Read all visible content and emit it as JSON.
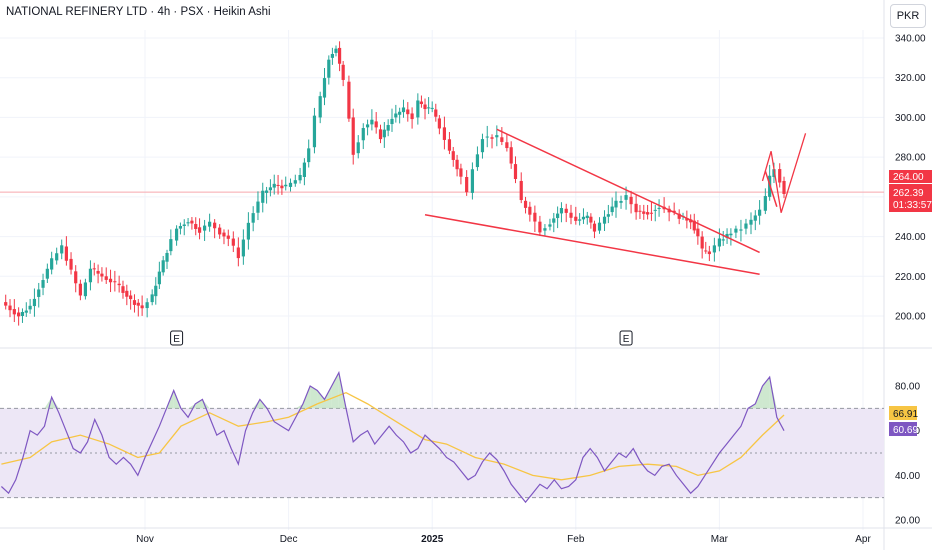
{
  "header": {
    "title": "NATIONAL REFINERY LTD · 4h · PSX · Heikin Ashi",
    "currency": "PKR"
  },
  "chart_data": [
    {
      "type": "candlestick",
      "ticker": "NATIONAL REFINERY LTD",
      "interval": "4h",
      "exchange": "PSX",
      "style": "Heikin Ashi",
      "y_ticks": [
        "340.00",
        "320.00",
        "300.00",
        "280.00",
        "260.00",
        "240.00",
        "220.00",
        "200.00"
      ],
      "x_ticks": [
        "Nov",
        "Dec",
        "2025",
        "Feb",
        "Mar",
        "Apr"
      ],
      "ylim": [
        190,
        345
      ],
      "x_range_months": [
        9.0,
        15.0
      ],
      "colors": {
        "up": "#26a69a",
        "down": "#f23645",
        "trendline": "#f23645",
        "current_line": "#f7a8ae"
      },
      "last_price": "262.39",
      "price_label_top": "264.00",
      "countdown": "01:33:57",
      "earnings_markers": [
        {
          "label": "E",
          "month": 10.22
        },
        {
          "label": "E",
          "month": 13.35
        }
      ],
      "path": [
        [
          9.0,
          207
        ],
        [
          9.12,
          200
        ],
        [
          9.2,
          205
        ],
        [
          9.35,
          228
        ],
        [
          9.42,
          235
        ],
        [
          9.55,
          210
        ],
        [
          9.62,
          224
        ],
        [
          9.7,
          220
        ],
        [
          9.82,
          215
        ],
        [
          9.9,
          208
        ],
        [
          9.98,
          204
        ],
        [
          10.05,
          210
        ],
        [
          10.1,
          222
        ],
        [
          10.18,
          238
        ],
        [
          10.22,
          244
        ],
        [
          10.3,
          248
        ],
        [
          10.38,
          243
        ],
        [
          10.45,
          247
        ],
        [
          10.52,
          242
        ],
        [
          10.58,
          239
        ],
        [
          10.65,
          230
        ],
        [
          10.72,
          247
        ],
        [
          10.82,
          262
        ],
        [
          10.9,
          266
        ],
        [
          10.98,
          265
        ],
        [
          11.08,
          270
        ],
        [
          11.14,
          285
        ],
        [
          11.18,
          300
        ],
        [
          11.22,
          310
        ],
        [
          11.28,
          330
        ],
        [
          11.33,
          335
        ],
        [
          11.38,
          318
        ],
        [
          11.42,
          300
        ],
        [
          11.45,
          282
        ],
        [
          11.52,
          295
        ],
        [
          11.58,
          298
        ],
        [
          11.64,
          290
        ],
        [
          11.72,
          300
        ],
        [
          11.8,
          304
        ],
        [
          11.86,
          300
        ],
        [
          11.9,
          308
        ],
        [
          11.95,
          305
        ],
        [
          12.0,
          304
        ],
        [
          12.05,
          295
        ],
        [
          12.12,
          283
        ],
        [
          12.2,
          270
        ],
        [
          12.24,
          262
        ],
        [
          12.28,
          275
        ],
        [
          12.35,
          290
        ],
        [
          12.45,
          290
        ],
        [
          12.52,
          285
        ],
        [
          12.58,
          268
        ],
        [
          12.62,
          258
        ],
        [
          12.68,
          252
        ],
        [
          12.75,
          243
        ],
        [
          12.82,
          247
        ],
        [
          12.9,
          254
        ],
        [
          13.0,
          248
        ],
        [
          13.08,
          250
        ],
        [
          13.13,
          243
        ],
        [
          13.2,
          250
        ],
        [
          13.28,
          257
        ],
        [
          13.35,
          260
        ],
        [
          13.42,
          253
        ],
        [
          13.5,
          252
        ],
        [
          13.58,
          255
        ],
        [
          13.65,
          253
        ],
        [
          13.72,
          250
        ],
        [
          13.8,
          248
        ],
        [
          13.85,
          240
        ],
        [
          13.88,
          233
        ],
        [
          13.93,
          232
        ],
        [
          14.0,
          238
        ],
        [
          14.08,
          242
        ],
        [
          14.15,
          244
        ],
        [
          14.22,
          248
        ],
        [
          14.28,
          253
        ],
        [
          14.32,
          260
        ],
        [
          14.35,
          270
        ],
        [
          14.38,
          274
        ],
        [
          14.42,
          268
        ],
        [
          14.45,
          262
        ]
      ],
      "annotations": [
        {
          "type": "line",
          "label": "falling wedge upper",
          "from": [
            12.45,
            294
          ],
          "to": [
            14.28,
            232
          ]
        },
        {
          "type": "line",
          "label": "falling wedge lower",
          "from": [
            11.95,
            251
          ],
          "to": [
            14.28,
            221
          ]
        },
        {
          "type": "zigzag",
          "label": "projection",
          "points": [
            [
              14.3,
              268
            ],
            [
              14.36,
              283
            ],
            [
              14.43,
              252
            ],
            [
              14.6,
              292
            ]
          ]
        },
        {
          "type": "line",
          "from": [
            14.32,
            273
          ],
          "to": [
            14.4,
            255
          ]
        }
      ]
    },
    {
      "type": "line",
      "indicator": "RSI",
      "y_ticks": [
        "80.00",
        "60.00",
        "40.00",
        "20.00"
      ],
      "ylim": [
        18,
        90
      ],
      "band": [
        30,
        70
      ],
      "midline": 50,
      "colors": {
        "rsi": "#7e57c2",
        "ma": "#f7c544",
        "band_fill": "#ede7f6"
      },
      "rsi_value": "60.69",
      "ma_value": "66.91",
      "rsi": [
        [
          9.0,
          35
        ],
        [
          9.05,
          32
        ],
        [
          9.1,
          38
        ],
        [
          9.15,
          48
        ],
        [
          9.2,
          60
        ],
        [
          9.25,
          58
        ],
        [
          9.3,
          62
        ],
        [
          9.35,
          75
        ],
        [
          9.4,
          68
        ],
        [
          9.45,
          60
        ],
        [
          9.5,
          52
        ],
        [
          9.55,
          50
        ],
        [
          9.6,
          55
        ],
        [
          9.65,
          65
        ],
        [
          9.7,
          58
        ],
        [
          9.75,
          48
        ],
        [
          9.8,
          45
        ],
        [
          9.85,
          48
        ],
        [
          9.9,
          45
        ],
        [
          9.95,
          40
        ],
        [
          10.0,
          48
        ],
        [
          10.05,
          55
        ],
        [
          10.1,
          62
        ],
        [
          10.15,
          70
        ],
        [
          10.2,
          78
        ],
        [
          10.25,
          70
        ],
        [
          10.3,
          66
        ],
        [
          10.35,
          72
        ],
        [
          10.4,
          74
        ],
        [
          10.45,
          66
        ],
        [
          10.5,
          58
        ],
        [
          10.55,
          60
        ],
        [
          10.6,
          52
        ],
        [
          10.65,
          45
        ],
        [
          10.7,
          60
        ],
        [
          10.75,
          68
        ],
        [
          10.8,
          74
        ],
        [
          10.85,
          70
        ],
        [
          10.9,
          64
        ],
        [
          10.95,
          62
        ],
        [
          11.0,
          60
        ],
        [
          11.05,
          66
        ],
        [
          11.1,
          72
        ],
        [
          11.15,
          80
        ],
        [
          11.2,
          78
        ],
        [
          11.25,
          74
        ],
        [
          11.3,
          80
        ],
        [
          11.35,
          86
        ],
        [
          11.4,
          70
        ],
        [
          11.45,
          55
        ],
        [
          11.5,
          58
        ],
        [
          11.55,
          60
        ],
        [
          11.6,
          54
        ],
        [
          11.65,
          58
        ],
        [
          11.7,
          62
        ],
        [
          11.75,
          58
        ],
        [
          11.8,
          55
        ],
        [
          11.85,
          50
        ],
        [
          11.9,
          52
        ],
        [
          11.95,
          58
        ],
        [
          12.0,
          55
        ],
        [
          12.05,
          52
        ],
        [
          12.1,
          48
        ],
        [
          12.15,
          46
        ],
        [
          12.2,
          42
        ],
        [
          12.25,
          38
        ],
        [
          12.3,
          40
        ],
        [
          12.35,
          46
        ],
        [
          12.4,
          50
        ],
        [
          12.45,
          47
        ],
        [
          12.5,
          42
        ],
        [
          12.55,
          36
        ],
        [
          12.6,
          32
        ],
        [
          12.65,
          28
        ],
        [
          12.7,
          32
        ],
        [
          12.75,
          36
        ],
        [
          12.8,
          34
        ],
        [
          12.85,
          38
        ],
        [
          12.9,
          34
        ],
        [
          12.95,
          35
        ],
        [
          13.0,
          38
        ],
        [
          13.05,
          48
        ],
        [
          13.1,
          52
        ],
        [
          13.15,
          48
        ],
        [
          13.2,
          42
        ],
        [
          13.25,
          46
        ],
        [
          13.3,
          50
        ],
        [
          13.35,
          48
        ],
        [
          13.4,
          52
        ],
        [
          13.45,
          46
        ],
        [
          13.5,
          42
        ],
        [
          13.55,
          40
        ],
        [
          13.6,
          44
        ],
        [
          13.65,
          45
        ],
        [
          13.7,
          40
        ],
        [
          13.75,
          36
        ],
        [
          13.8,
          32
        ],
        [
          13.85,
          35
        ],
        [
          13.9,
          40
        ],
        [
          13.95,
          45
        ],
        [
          14.0,
          50
        ],
        [
          14.05,
          54
        ],
        [
          14.1,
          58
        ],
        [
          14.15,
          62
        ],
        [
          14.2,
          70
        ],
        [
          14.25,
          72
        ],
        [
          14.3,
          80
        ],
        [
          14.35,
          84
        ],
        [
          14.4,
          66
        ],
        [
          14.45,
          60
        ]
      ],
      "ma": [
        [
          9.0,
          45
        ],
        [
          9.2,
          48
        ],
        [
          9.35,
          55
        ],
        [
          9.55,
          58
        ],
        [
          9.75,
          54
        ],
        [
          9.95,
          48
        ],
        [
          10.1,
          50
        ],
        [
          10.25,
          62
        ],
        [
          10.45,
          68
        ],
        [
          10.65,
          62
        ],
        [
          10.85,
          64
        ],
        [
          11.0,
          66
        ],
        [
          11.2,
          72
        ],
        [
          11.4,
          77
        ],
        [
          11.55,
          72
        ],
        [
          11.75,
          64
        ],
        [
          11.95,
          56
        ],
        [
          12.1,
          54
        ],
        [
          12.3,
          48
        ],
        [
          12.5,
          45
        ],
        [
          12.7,
          40
        ],
        [
          12.9,
          38
        ],
        [
          13.1,
          40
        ],
        [
          13.3,
          44
        ],
        [
          13.5,
          45
        ],
        [
          13.7,
          44
        ],
        [
          13.85,
          40
        ],
        [
          14.0,
          42
        ],
        [
          14.15,
          48
        ],
        [
          14.3,
          58
        ],
        [
          14.45,
          67
        ]
      ]
    }
  ]
}
